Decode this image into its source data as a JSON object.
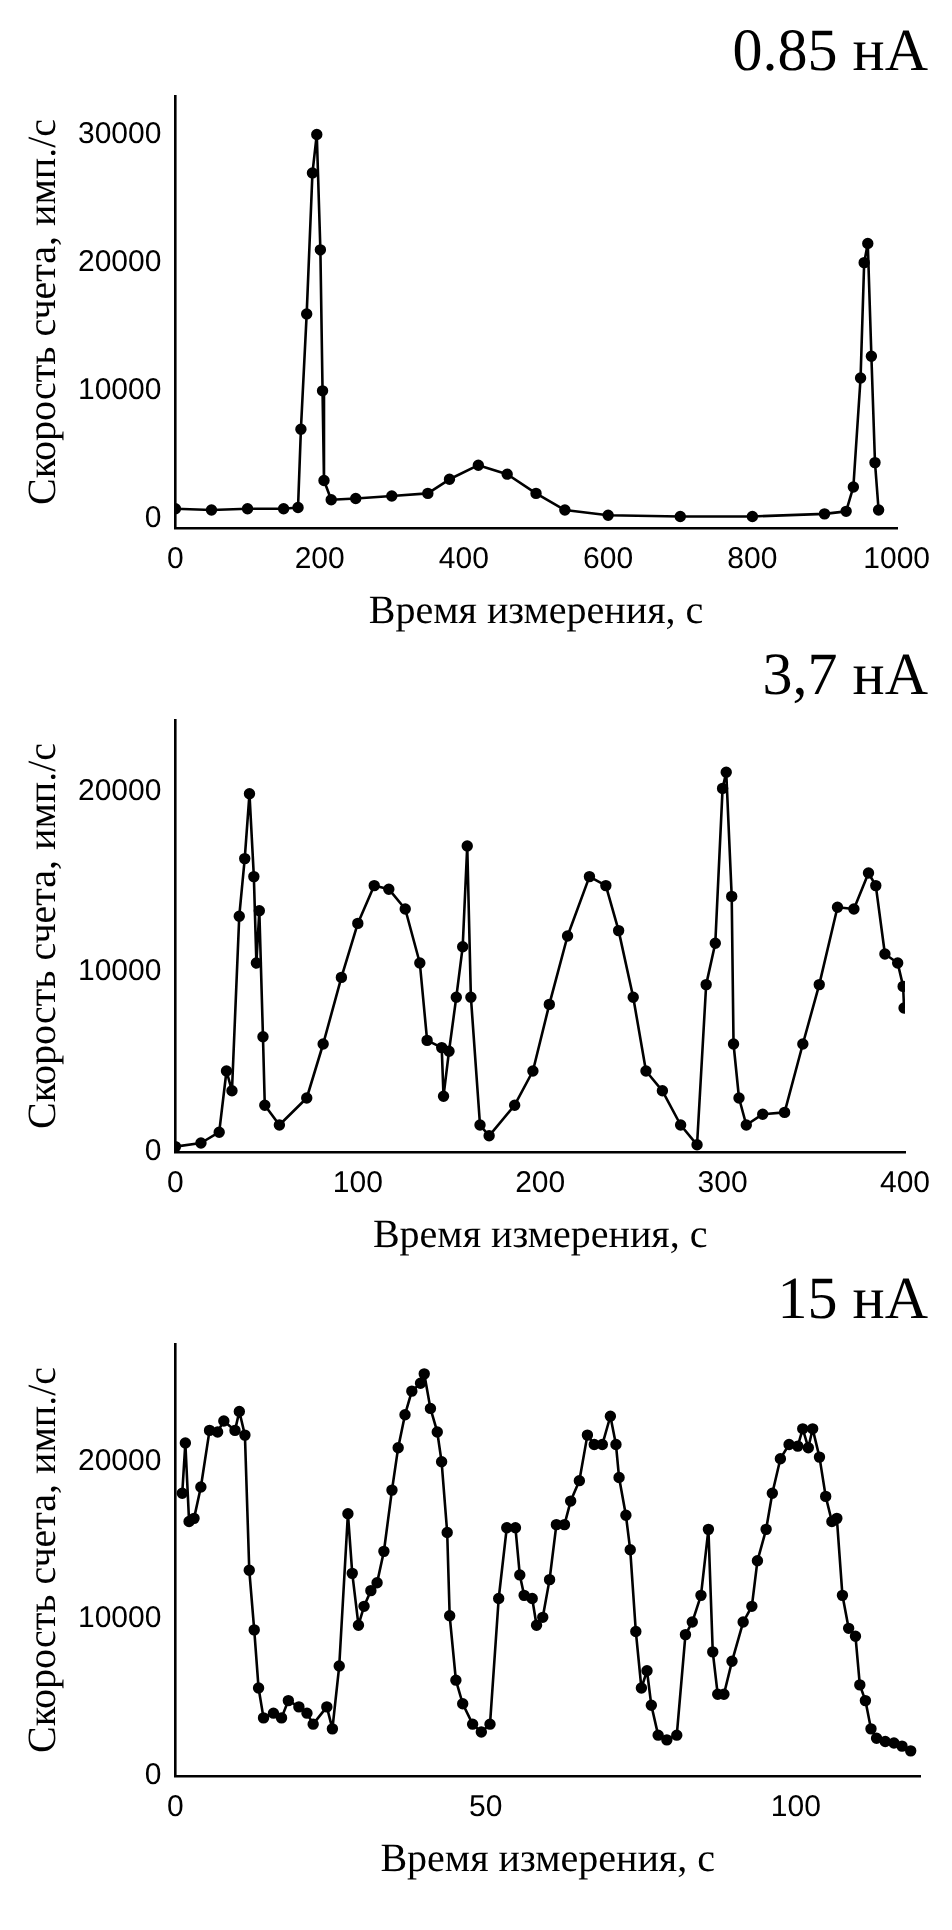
{
  "chart_data": [
    {
      "type": "line",
      "title": "0.85 нА",
      "xlabel": "Время измерения, с",
      "ylabel": "Скорость счета, имп./с",
      "marker": "circle",
      "grid": false,
      "legend": false,
      "xlim": [
        0,
        1000
      ],
      "xticks": [
        0,
        200,
        400,
        600,
        800,
        1000
      ],
      "ylim": [
        -700,
        33000
      ],
      "yticks": [
        0,
        10000,
        20000,
        30000
      ],
      "x": [
        0,
        50,
        100,
        150,
        170,
        174,
        182,
        190,
        196,
        201,
        204,
        206,
        216,
        250,
        300,
        350,
        380,
        420,
        460,
        500,
        540,
        600,
        700,
        800,
        900,
        930,
        940,
        950,
        955,
        960,
        965,
        970,
        975
      ],
      "series": [
        {
          "color": "#000000",
          "values": [
            800,
            700,
            800,
            800,
            900,
            7000,
            16000,
            27000,
            30000,
            21000,
            10000,
            3000,
            1500,
            1600,
            1800,
            2000,
            3100,
            4200,
            3500,
            2000,
            700,
            300,
            200,
            200,
            400,
            600,
            2500,
            11000,
            20000,
            21500,
            12700,
            4400,
            700
          ]
        }
      ]
    },
    {
      "type": "line",
      "title": "3,7 нА",
      "xlabel": "Время измерения, с",
      "ylabel": "Скорость счета, имп./с",
      "marker": "circle",
      "grid": false,
      "legend": false,
      "xlim": [
        0,
        400
      ],
      "xticks": [
        0,
        100,
        200,
        300,
        400
      ],
      "ylim": [
        0,
        24000
      ],
      "yticks": [
        0,
        10000,
        20000
      ],
      "x": [
        0,
        14,
        24,
        28,
        31,
        35,
        38,
        40.6,
        43,
        44.4,
        46,
        48,
        49,
        57,
        72,
        81,
        91,
        100,
        109,
        117,
        126,
        134,
        138,
        146,
        147,
        150,
        154,
        157.5,
        160,
        162,
        167,
        172,
        186,
        196,
        205,
        215,
        227,
        236,
        243,
        251,
        258,
        267,
        277,
        286,
        291,
        296,
        300,
        302,
        305,
        306,
        309,
        313,
        322,
        334,
        344,
        353,
        363,
        372,
        380,
        384,
        389,
        396,
        399,
        399.5
      ],
      "series": [
        {
          "color": "#000000",
          "values": [
            300,
            500,
            1100,
            4500,
            3400,
            13100,
            16300,
            19900,
            15300,
            10500,
            13400,
            6400,
            2600,
            1500,
            3000,
            6000,
            9700,
            12700,
            14800,
            14600,
            13500,
            10500,
            6200,
            5800,
            3100,
            5600,
            8600,
            11400,
            17000,
            8600,
            1500,
            900,
            2600,
            4500,
            8200,
            12000,
            15300,
            14800,
            12300,
            8600,
            4500,
            3400,
            1500,
            400,
            9300,
            11600,
            20200,
            21100,
            14200,
            6000,
            3000,
            1500,
            2100,
            2200,
            6000,
            9300,
            13600,
            13500,
            15500,
            14800,
            11000,
            10500,
            9200,
            8000
          ]
        }
      ]
    },
    {
      "type": "line",
      "title": "15 нА",
      "xlabel": "Время измерения, с",
      "ylabel": "Скорость счета, имп./с",
      "marker": "circle",
      "grid": false,
      "legend": false,
      "xlim": [
        0,
        120
      ],
      "xticks": [
        0,
        50,
        100
      ],
      "ylim": [
        0,
        27500
      ],
      "yticks": [
        0,
        10000,
        20000
      ],
      "x": [
        1.1,
        1.6,
        2.2,
        3,
        4.1,
        5.5,
        6.8,
        7.8,
        9.6,
        10.3,
        11.2,
        11.9,
        12.7,
        13.4,
        14.2,
        15.8,
        17.1,
        18.2,
        19.9,
        21.2,
        22.2,
        24.4,
        25.3,
        26.4,
        27.8,
        28.5,
        29.5,
        30.4,
        31.5,
        32.5,
        33.6,
        34.9,
        35.9,
        37,
        38.1,
        39.5,
        40.1,
        41.1,
        42.2,
        42.9,
        43.8,
        44.2,
        45.2,
        46.3,
        47.9,
        49.3,
        50.7,
        52.1,
        53.4,
        54.8,
        55.5,
        56.2,
        57.5,
        58.2,
        59.2,
        60.3,
        61.4,
        62.7,
        63.7,
        65.1,
        66.4,
        67.5,
        68.8,
        70.1,
        71,
        71.5,
        72.6,
        73.3,
        74.2,
        75.1,
        76,
        76.7,
        77.8,
        79.2,
        80.8,
        82.2,
        83.3,
        84.7,
        85.9,
        86.6,
        87.4,
        88.4,
        89.7,
        91.5,
        92.9,
        93.8,
        95.2,
        96.2,
        97.5,
        98.9,
        100.3,
        101.1,
        102,
        102.7,
        103.8,
        104.8,
        105.8,
        106.6,
        107.5,
        108.5,
        109.6,
        110.3,
        111.2,
        112.1,
        113,
        114.4,
        115.8,
        117.1,
        118.5
      ],
      "series": [
        {
          "color": "#000000",
          "values": [
            18000,
            21200,
            16200,
            16400,
            18400,
            22000,
            21900,
            22600,
            22000,
            23200,
            21700,
            13100,
            9300,
            5600,
            3700,
            4000,
            3700,
            4800,
            4400,
            4000,
            3300,
            4400,
            3000,
            7000,
            16700,
            12900,
            9600,
            10800,
            11800,
            12300,
            14300,
            18200,
            20900,
            23000,
            24500,
            25000,
            25600,
            23400,
            21900,
            20000,
            15500,
            10200,
            6100,
            4600,
            3300,
            2800,
            3300,
            11300,
            15800,
            15800,
            12800,
            11500,
            11300,
            9600,
            10100,
            12500,
            16000,
            16000,
            17500,
            18800,
            21700,
            21100,
            21100,
            22900,
            21100,
            19000,
            16600,
            14400,
            9200,
            5600,
            6700,
            4500,
            2600,
            2300,
            2600,
            9000,
            9800,
            11500,
            15700,
            7900,
            5200,
            5200,
            7300,
            9800,
            10800,
            13700,
            15700,
            18000,
            20200,
            21100,
            21000,
            22100,
            20900,
            22100,
            20300,
            17800,
            16200,
            16400,
            11500,
            9400,
            8900,
            5800,
            4800,
            3000,
            2400,
            2200,
            2100,
            1900,
            1600
          ]
        }
      ]
    }
  ]
}
